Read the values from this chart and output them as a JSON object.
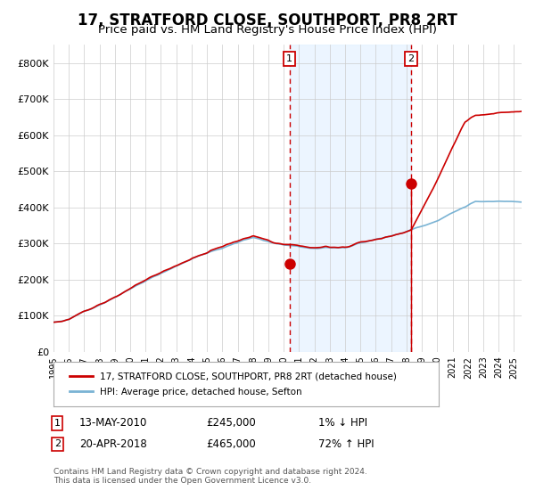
{
  "title": "17, STRATFORD CLOSE, SOUTHPORT, PR8 2RT",
  "subtitle": "Price paid vs. HM Land Registry's House Price Index (HPI)",
  "title_fontsize": 12,
  "subtitle_fontsize": 9.5,
  "ylim": [
    0,
    850000
  ],
  "yticks": [
    0,
    100000,
    200000,
    300000,
    400000,
    500000,
    600000,
    700000,
    800000
  ],
  "ytick_labels": [
    "£0",
    "£100K",
    "£200K",
    "£300K",
    "£400K",
    "£500K",
    "£600K",
    "£700K",
    "£800K"
  ],
  "xlim_start": 1995.0,
  "xlim_end": 2025.5,
  "grid_color": "#cccccc",
  "hpi_line_color": "#7ab3d4",
  "price_line_color": "#cc0000",
  "shade_color": "#ddeeff",
  "shade_alpha": 0.55,
  "sale1_x": 2010.37,
  "sale1_y": 245000,
  "sale2_x": 2018.3,
  "sale2_y": 465000,
  "sale1_label": "1",
  "sale2_label": "2",
  "legend_line1": "17, STRATFORD CLOSE, SOUTHPORT, PR8 2RT (detached house)",
  "legend_line2": "HPI: Average price, detached house, Sefton",
  "table_row1": [
    "1",
    "13-MAY-2010",
    "£245,000",
    "1% ↓ HPI"
  ],
  "table_row2": [
    "2",
    "20-APR-2018",
    "£465,000",
    "72% ↑ HPI"
  ],
  "footnote": "Contains HM Land Registry data © Crown copyright and database right 2024.\nThis data is licensed under the Open Government Licence v3.0."
}
